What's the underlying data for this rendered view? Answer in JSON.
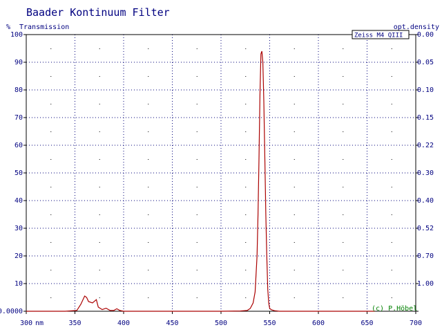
{
  "chart_data": {
    "type": "line",
    "title": "Baader Kontinuum Filter",
    "ylabel": "Transmission",
    "ylabel_unit": "%",
    "y2label": "opt.density",
    "xlabel_unit": "nm",
    "xlim": [
      300,
      700
    ],
    "ylim": [
      0,
      100
    ],
    "x_ticks": [
      300,
      350,
      400,
      450,
      500,
      550,
      600,
      650,
      700
    ],
    "x_tick_labels": [
      "300",
      "350",
      "400",
      "450",
      "500",
      "550",
      "600",
      "650",
      "700"
    ],
    "y_ticks": [
      0,
      10,
      20,
      30,
      40,
      50,
      60,
      70,
      80,
      90,
      100
    ],
    "y_tick_labels": [
      "0.0000",
      "10",
      "20",
      "30",
      "40",
      "50",
      "60",
      "70",
      "80",
      "90",
      "100"
    ],
    "y2_tick_labels": [
      "",
      "1.00",
      "0.70",
      "0.52",
      "0.40",
      "0.30",
      "0.22",
      "0.15",
      "0.10",
      "0.05",
      "0.00"
    ],
    "grid": true,
    "legend": "Zeiss M4 QIII",
    "legend_position": "top-right",
    "annotation": "(c) P.Höbel",
    "series": [
      {
        "name": "Zeiss M4 QIII",
        "color": "#aa0000",
        "x": [
          300,
          340,
          352,
          356,
          360,
          362,
          364,
          368,
          372,
          374,
          378,
          382,
          386,
          390,
          393,
          396,
          400,
          410,
          450,
          500,
          520,
          527,
          530,
          533,
          535,
          537,
          538,
          539,
          540,
          541,
          542,
          543,
          544,
          545,
          546,
          547,
          548,
          549,
          550,
          552,
          555,
          560,
          600,
          650,
          658
        ],
        "y": [
          0,
          0,
          0.3,
          2.5,
          5.5,
          5.0,
          3.5,
          3.0,
          4.2,
          1.5,
          0.6,
          1.1,
          0.3,
          0.3,
          0.9,
          0.3,
          0,
          0,
          0,
          0,
          0.1,
          0.3,
          1.0,
          3.0,
          7.0,
          20,
          35,
          55,
          78,
          93,
          94,
          90,
          76,
          55,
          35,
          20,
          8,
          3,
          1.0,
          0.5,
          0.2,
          0,
          0,
          0,
          0
        ]
      }
    ]
  }
}
